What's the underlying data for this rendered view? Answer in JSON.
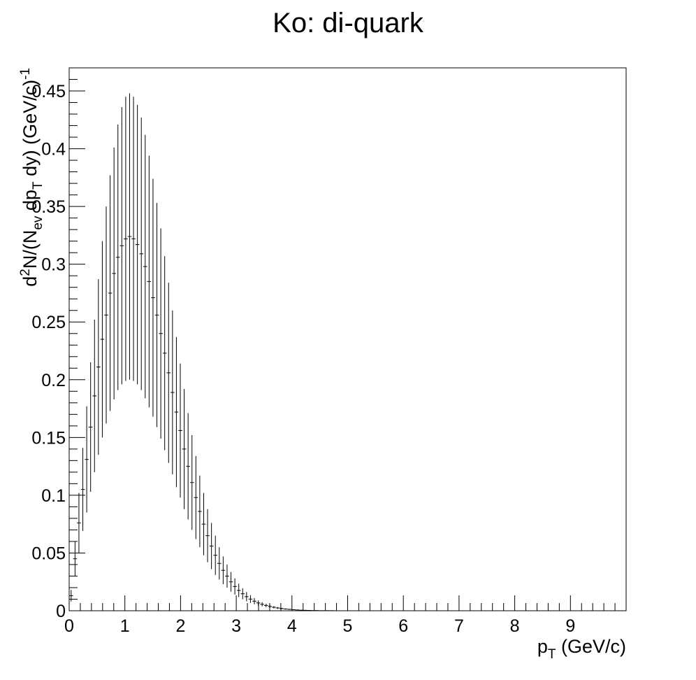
{
  "chart_data": {
    "type": "scatter",
    "title": "Ko: di-quark",
    "xlabel": {
      "base": "p",
      "sub": "T",
      "unit": " (GeV/c)"
    },
    "ylabel": {
      "d": "d",
      "sup2": "2",
      "n": "N/(N",
      "sub_ev": "ev",
      "mid": " dp",
      "sub_t": "T",
      "tail": " dy) (GeV/c)",
      "sup_exp": "-1"
    },
    "xlim": [
      0,
      10
    ],
    "ylim": [
      0,
      0.47
    ],
    "x_ticks": [
      "0",
      "1",
      "2",
      "3",
      "4",
      "5",
      "6",
      "7",
      "8",
      "9"
    ],
    "y_ticks": [
      "0",
      "0.05",
      "0.1",
      "0.15",
      "0.2",
      "0.25",
      "0.3",
      "0.35",
      "0.4",
      "0.45"
    ],
    "bin_width": 0.07,
    "series": [
      {
        "x": [
          0.035,
          0.105,
          0.175,
          0.245,
          0.315,
          0.385,
          0.455,
          0.525,
          0.595,
          0.665,
          0.735,
          0.805,
          0.875,
          0.945,
          1.015,
          1.085,
          1.155,
          1.225,
          1.295,
          1.365,
          1.435,
          1.505,
          1.575,
          1.645,
          1.715,
          1.785,
          1.855,
          1.925,
          1.995,
          2.065,
          2.135,
          2.205,
          2.275,
          2.345,
          2.415,
          2.485,
          2.555,
          2.625,
          2.695,
          2.765,
          2.835,
          2.905,
          2.975,
          3.045,
          3.115,
          3.185,
          3.255,
          3.325,
          3.395,
          3.465,
          3.535,
          3.605,
          3.675,
          3.745,
          3.815,
          3.885,
          3.955,
          4.025,
          4.095,
          4.165,
          4.235,
          4.305,
          4.375,
          4.445,
          4.515,
          4.585,
          4.655,
          4.725,
          4.795,
          4.865,
          4.935,
          5.005,
          5.075,
          5.145,
          5.215
        ],
        "y": [
          0.013,
          0.045,
          0.076,
          0.105,
          0.131,
          0.159,
          0.186,
          0.211,
          0.235,
          0.256,
          0.275,
          0.292,
          0.306,
          0.316,
          0.322,
          0.324,
          0.322,
          0.317,
          0.309,
          0.298,
          0.285,
          0.271,
          0.256,
          0.24,
          0.223,
          0.206,
          0.189,
          0.172,
          0.156,
          0.14,
          0.125,
          0.111,
          0.098,
          0.086,
          0.075,
          0.065,
          0.056,
          0.048,
          0.041,
          0.035,
          0.03,
          0.025,
          0.021,
          0.0176,
          0.0147,
          0.0122,
          0.0101,
          0.0083,
          0.0068,
          0.0056,
          0.0046,
          0.0037,
          0.003,
          0.0024,
          0.0019,
          0.0015,
          0.0012,
          0.0009,
          0.0007,
          0.0005,
          0.0004,
          0.0003,
          0.0002,
          0.0002,
          0.0001,
          0.0001,
          0.0001,
          0.0001,
          0.0,
          0.0,
          0.0,
          0.0,
          0.0,
          0.0,
          0.0
        ],
        "y_err": [
          0.005,
          0.015,
          0.026,
          0.036,
          0.046,
          0.056,
          0.066,
          0.076,
          0.085,
          0.094,
          0.102,
          0.109,
          0.115,
          0.12,
          0.123,
          0.124,
          0.123,
          0.121,
          0.118,
          0.114,
          0.109,
          0.103,
          0.097,
          0.091,
          0.084,
          0.078,
          0.071,
          0.065,
          0.058,
          0.052,
          0.046,
          0.041,
          0.036,
          0.031,
          0.027,
          0.023,
          0.02,
          0.017,
          0.014,
          0.012,
          0.01,
          0.0085,
          0.007,
          0.0058,
          0.0048,
          0.004,
          0.0033,
          0.0027,
          0.0022,
          0.0018,
          0.0015,
          0.0012,
          0.001,
          0.0008,
          0.0006,
          0.0005,
          0.0004,
          0.0003,
          0.0002,
          0.0002,
          0.0001,
          0.0001,
          0.0001,
          0.0001,
          0.0,
          0.0,
          0.0,
          0.0,
          0.0,
          0.0,
          0.0,
          0.0,
          0.0,
          0.0,
          0.0
        ]
      }
    ],
    "grid": false,
    "legend": "none"
  }
}
